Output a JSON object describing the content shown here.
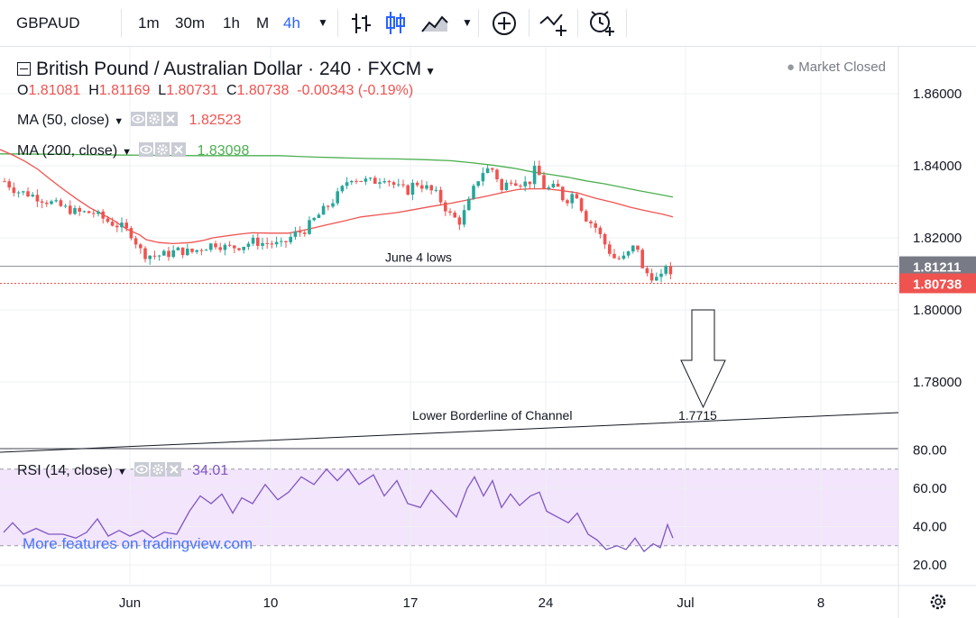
{
  "toolbar": {
    "symbol": "GBPAUD",
    "intervals": [
      "1m",
      "30m",
      "1h",
      "M",
      "4h"
    ],
    "active_interval": "4h"
  },
  "legend": {
    "title": "British Pound / Australian Dollar · 240 · FXCM",
    "ohlc": {
      "o_label": "O",
      "o": "1.81081",
      "h_label": "H",
      "h": "1.81169",
      "l_label": "L",
      "l": "1.80731",
      "c_label": "C",
      "c": "1.80738",
      "change": "-0.00343 (-0.19%)"
    },
    "ma50": {
      "label": "MA (50, close)",
      "value": "1.82523",
      "color": "#ef5350"
    },
    "ma200": {
      "label": "MA (200, close)",
      "value": "1.83098",
      "color": "#4caf50"
    },
    "rsi": {
      "label": "RSI (14, close)",
      "value": "34.01",
      "color": "#7e57c2"
    },
    "market_status": "Market Closed"
  },
  "watermark": "More features on tradingview.com",
  "colors": {
    "up": "#26a69a",
    "down": "#ef5350",
    "ma50": "#ef5350",
    "ma200": "#4caf50",
    "rsi": "#7e57c2",
    "rsi_band": "#f3e5fc"
  },
  "chart_data": {
    "type": "candlestick",
    "pair": "GBPAUD",
    "timeframe": "240",
    "y_ticks": [
      "1.86000",
      "1.84000",
      "1.82000",
      "1.80000",
      "1.78000"
    ],
    "ylim": [
      1.7665,
      1.8685
    ],
    "x_ticks": [
      "Jun",
      "10",
      "17",
      "24",
      "Jul",
      "8"
    ],
    "price_labels": [
      {
        "value": 1.81211,
        "text": "1.81211",
        "kind": "june4"
      },
      {
        "value": 1.80738,
        "text": "1.80738",
        "kind": "last"
      }
    ],
    "annotations": {
      "june4_label": "June 4 lows",
      "june4_value": 1.81211,
      "channel_label": "Lower Borderline of Channel",
      "target_label": "1.7715"
    },
    "ma50_points": [
      [
        0,
        1.8445
      ],
      [
        14,
        1.843
      ],
      [
        28,
        1.8412
      ],
      [
        42,
        1.839
      ],
      [
        56,
        1.8362
      ],
      [
        70,
        1.8335
      ],
      [
        85,
        1.8308
      ],
      [
        100,
        1.8283
      ],
      [
        110,
        1.827
      ],
      [
        125,
        1.825
      ],
      [
        140,
        1.8225
      ],
      [
        155,
        1.8208
      ],
      [
        162,
        1.8195
      ],
      [
        176,
        1.8187
      ],
      [
        192,
        1.8184
      ],
      [
        212,
        1.8187
      ],
      [
        226,
        1.8193
      ],
      [
        236,
        1.82
      ],
      [
        250,
        1.8205
      ],
      [
        268,
        1.8211
      ],
      [
        280,
        1.8214
      ],
      [
        300,
        1.8213
      ],
      [
        320,
        1.8213
      ],
      [
        342,
        1.8224
      ],
      [
        362,
        1.8236
      ],
      [
        380,
        1.8246
      ],
      [
        400,
        1.8258
      ],
      [
        420,
        1.8264
      ],
      [
        440,
        1.827
      ],
      [
        458,
        1.8278
      ],
      [
        478,
        1.8287
      ],
      [
        500,
        1.8296
      ],
      [
        520,
        1.8306
      ],
      [
        540,
        1.8316
      ],
      [
        556,
        1.8325
      ],
      [
        574,
        1.8334
      ],
      [
        588,
        1.8336
      ],
      [
        606,
        1.8336
      ],
      [
        620,
        1.8332
      ],
      [
        640,
        1.8325
      ],
      [
        660,
        1.831
      ],
      [
        680,
        1.8298
      ],
      [
        700,
        1.8284
      ],
      [
        718,
        1.8274
      ],
      [
        734,
        1.8266
      ],
      [
        746,
        1.8258
      ]
    ],
    "ma200_points": [
      [
        0,
        1.8433
      ],
      [
        60,
        1.8432
      ],
      [
        120,
        1.843
      ],
      [
        170,
        1.8429
      ],
      [
        220,
        1.8428
      ],
      [
        270,
        1.8428
      ],
      [
        310,
        1.8428
      ],
      [
        330,
        1.8426
      ],
      [
        350,
        1.8424
      ],
      [
        380,
        1.8422
      ],
      [
        410,
        1.842
      ],
      [
        440,
        1.8419
      ],
      [
        470,
        1.8417
      ],
      [
        500,
        1.8414
      ],
      [
        520,
        1.8409
      ],
      [
        545,
        1.8402
      ],
      [
        570,
        1.8393
      ],
      [
        590,
        1.8383
      ],
      [
        610,
        1.8376
      ],
      [
        630,
        1.8368
      ],
      [
        650,
        1.8358
      ],
      [
        670,
        1.835
      ],
      [
        690,
        1.834
      ],
      [
        710,
        1.833
      ],
      [
        730,
        1.8321
      ],
      [
        746,
        1.8313
      ]
    ],
    "candles_anchor_points": [
      [
        5,
        1.8357
      ],
      [
        18,
        1.833
      ],
      [
        34,
        1.832
      ],
      [
        52,
        1.8302
      ],
      [
        66,
        1.8288
      ],
      [
        86,
        1.827
      ],
      [
        103,
        1.827
      ],
      [
        120,
        1.8245
      ],
      [
        135,
        1.823
      ],
      [
        146,
        1.821
      ],
      [
        158,
        1.8155
      ],
      [
        172,
        1.815
      ],
      [
        186,
        1.8155
      ],
      [
        196,
        1.8165
      ],
      [
        212,
        1.816
      ],
      [
        222,
        1.817
      ],
      [
        238,
        1.8185
      ],
      [
        252,
        1.8172
      ],
      [
        268,
        1.8178
      ],
      [
        280,
        1.819
      ],
      [
        292,
        1.8185
      ],
      [
        300,
        1.8185
      ],
      [
        312,
        1.8178
      ],
      [
        326,
        1.821
      ],
      [
        337,
        1.822
      ],
      [
        348,
        1.825
      ],
      [
        360,
        1.828
      ],
      [
        368,
        1.83
      ],
      [
        378,
        1.833
      ],
      [
        388,
        1.837
      ],
      [
        400,
        1.836
      ],
      [
        414,
        1.8355
      ],
      [
        426,
        1.837
      ],
      [
        440,
        1.834
      ],
      [
        452,
        1.833
      ],
      [
        460,
        1.8355
      ],
      [
        472,
        1.834
      ],
      [
        484,
        1.832
      ],
      [
        500,
        1.826
      ],
      [
        510,
        1.8245
      ],
      [
        520,
        1.83
      ],
      [
        528,
        1.8355
      ],
      [
        537,
        1.839
      ],
      [
        548,
        1.839
      ],
      [
        556,
        1.833
      ],
      [
        566,
        1.8365
      ],
      [
        574,
        1.8355
      ],
      [
        586,
        1.835
      ],
      [
        594,
        1.8395
      ],
      [
        604,
        1.8335
      ],
      [
        618,
        1.834
      ],
      [
        626,
        1.83
      ],
      [
        638,
        1.833
      ],
      [
        648,
        1.826
      ],
      [
        660,
        1.823
      ],
      [
        670,
        1.8185
      ],
      [
        680,
        1.8145
      ],
      [
        690,
        1.814
      ],
      [
        698,
        1.816
      ],
      [
        706,
        1.8185
      ],
      [
        712,
        1.811
      ],
      [
        722,
        1.8095
      ],
      [
        732,
        1.808
      ],
      [
        738,
        1.813
      ],
      [
        745,
        1.8076
      ]
    ],
    "channel_line": [
      [
        1.7605,
        0
      ],
      [
        1.7715,
        996
      ]
    ],
    "rsi": {
      "y_ticks": [
        "80.00",
        "60.00",
        "40.00",
        "20.00"
      ],
      "ylim": [
        13.6,
        82.1
      ],
      "band": [
        30,
        70
      ],
      "points": [
        [
          4,
          37
        ],
        [
          14,
          42
        ],
        [
          26,
          36
        ],
        [
          40,
          39
        ],
        [
          54,
          36
        ],
        [
          70,
          36
        ],
        [
          84,
          34
        ],
        [
          96,
          37
        ],
        [
          108,
          44
        ],
        [
          120,
          35
        ],
        [
          132,
          38
        ],
        [
          144,
          35
        ],
        [
          158,
          38
        ],
        [
          170,
          34
        ],
        [
          182,
          37
        ],
        [
          196,
          36
        ],
        [
          210,
          48
        ],
        [
          222,
          56
        ],
        [
          234,
          52
        ],
        [
          246,
          57
        ],
        [
          258,
          47
        ],
        [
          268,
          55
        ],
        [
          280,
          52
        ],
        [
          294,
          62
        ],
        [
          308,
          54
        ],
        [
          320,
          58
        ],
        [
          334,
          66
        ],
        [
          348,
          62
        ],
        [
          362,
          70
        ],
        [
          374,
          64
        ],
        [
          386,
          70
        ],
        [
          398,
          62
        ],
        [
          414,
          67
        ],
        [
          426,
          56
        ],
        [
          440,
          64
        ],
        [
          452,
          52
        ],
        [
          466,
          50
        ],
        [
          478,
          59
        ],
        [
          490,
          53
        ],
        [
          506,
          45
        ],
        [
          518,
          60
        ],
        [
          526,
          66
        ],
        [
          536,
          56
        ],
        [
          546,
          64
        ],
        [
          556,
          50
        ],
        [
          566,
          57
        ],
        [
          576,
          51
        ],
        [
          588,
          56
        ],
        [
          598,
          58
        ],
        [
          606,
          48
        ],
        [
          618,
          45
        ],
        [
          630,
          42
        ],
        [
          640,
          47
        ],
        [
          652,
          36
        ],
        [
          662,
          33
        ],
        [
          672,
          28
        ],
        [
          684,
          30
        ],
        [
          694,
          28
        ],
        [
          704,
          34
        ],
        [
          714,
          27
        ],
        [
          724,
          31
        ],
        [
          732,
          29
        ],
        [
          740,
          41
        ],
        [
          746,
          34
        ]
      ]
    }
  }
}
